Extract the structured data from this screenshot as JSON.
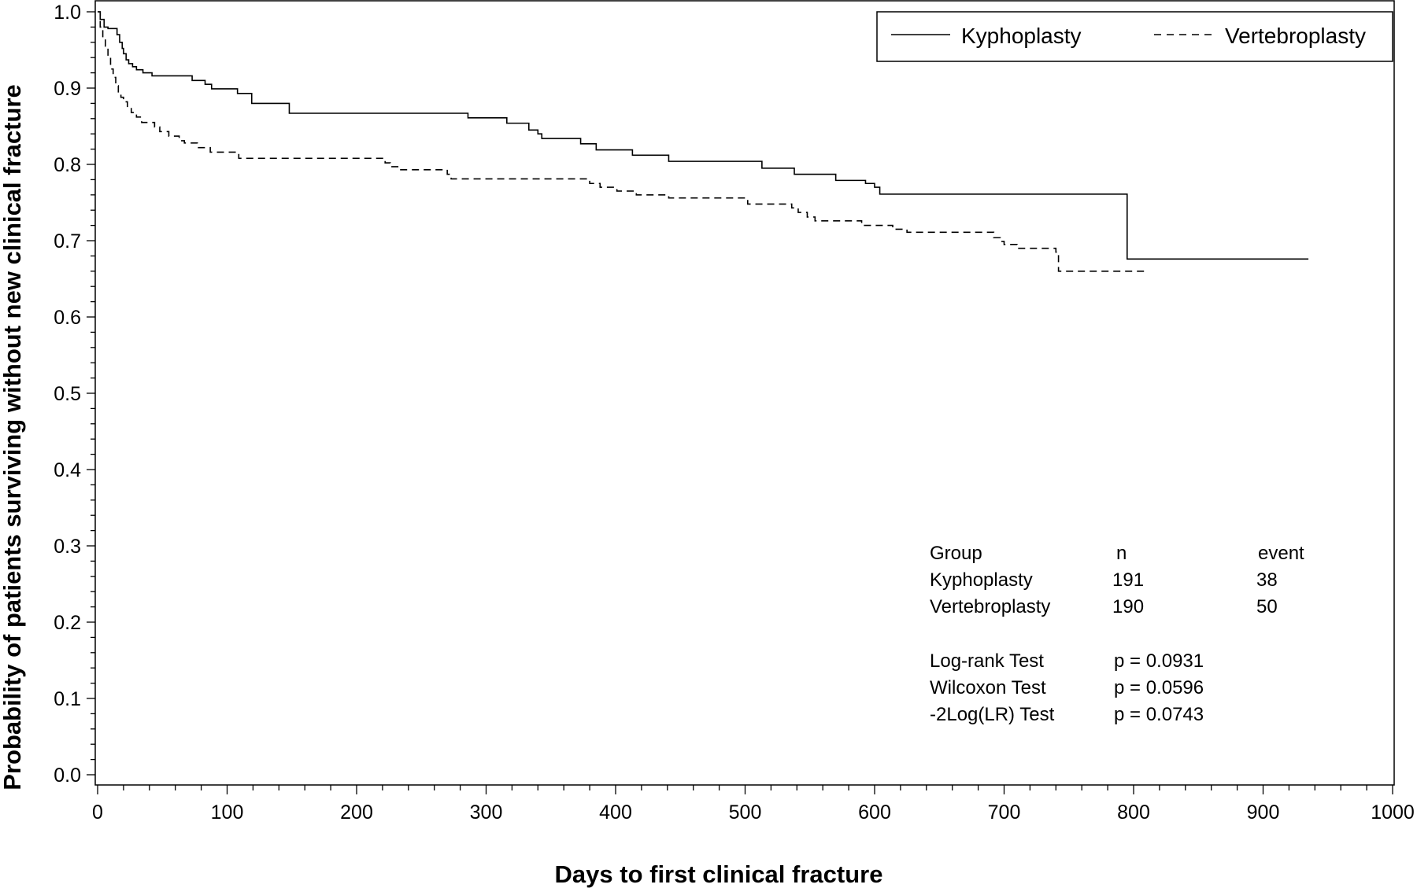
{
  "chart_data": {
    "type": "line",
    "title": "",
    "xlabel": "Days to first clinical fracture",
    "ylabel": "Probability of patients surviving without new clinical fracture",
    "xlim": [
      0,
      1000
    ],
    "ylim": [
      0.0,
      1.0
    ],
    "x_ticks": [
      0,
      100,
      200,
      300,
      400,
      500,
      600,
      700,
      800,
      900,
      1000
    ],
    "x_tick_labels": [
      "0",
      "100",
      "200",
      "300",
      "400",
      "500",
      "600",
      "700",
      "800",
      "900",
      "1000"
    ],
    "y_ticks": [
      0.0,
      0.1,
      0.2,
      0.3,
      0.4,
      0.5,
      0.6,
      0.7,
      0.8,
      0.9,
      1.0
    ],
    "y_tick_labels": [
      "0.0",
      "0.1",
      "0.2",
      "0.3",
      "0.4",
      "0.5",
      "0.6",
      "0.7",
      "0.8",
      "0.9",
      "1.0"
    ],
    "grid": false,
    "legend_position": "top-right",
    "series": [
      {
        "name": "Kyphoplasty",
        "line_style": "solid",
        "x": [
          0,
          2,
          5,
          8,
          15,
          17,
          19,
          20,
          22,
          24,
          27,
          30,
          35,
          42,
          73,
          83,
          88,
          108,
          119,
          148,
          286,
          316,
          333,
          340,
          343,
          373,
          385,
          413,
          441,
          513,
          538,
          570,
          593,
          600,
          604,
          795,
          935
        ],
        "y": [
          1.0,
          0.99,
          0.98,
          0.978,
          0.97,
          0.96,
          0.952,
          0.945,
          0.937,
          0.932,
          0.928,
          0.924,
          0.92,
          0.916,
          0.91,
          0.905,
          0.899,
          0.893,
          0.88,
          0.867,
          0.861,
          0.854,
          0.845,
          0.84,
          0.834,
          0.827,
          0.819,
          0.812,
          0.804,
          0.795,
          0.787,
          0.779,
          0.775,
          0.77,
          0.761,
          0.676,
          0.676
        ]
      },
      {
        "name": "Vertebroplasty",
        "line_style": "dashed",
        "x": [
          0,
          2,
          4,
          6,
          8,
          10,
          12,
          14,
          16,
          18,
          20,
          23,
          26,
          30,
          34,
          44,
          48,
          55,
          63,
          67,
          77,
          87,
          109,
          222,
          226,
          233,
          270,
          273,
          380,
          388,
          401,
          416,
          441,
          502,
          536,
          541,
          548,
          554,
          590,
          614,
          625,
          692,
          697,
          700,
          710,
          740,
          742,
          810
        ],
        "y": [
          1.0,
          0.98,
          0.965,
          0.955,
          0.94,
          0.925,
          0.914,
          0.903,
          0.894,
          0.888,
          0.882,
          0.875,
          0.868,
          0.862,
          0.855,
          0.849,
          0.843,
          0.837,
          0.831,
          0.828,
          0.822,
          0.816,
          0.808,
          0.802,
          0.797,
          0.793,
          0.787,
          0.781,
          0.775,
          0.77,
          0.765,
          0.76,
          0.756,
          0.748,
          0.743,
          0.737,
          0.731,
          0.726,
          0.72,
          0.715,
          0.711,
          0.704,
          0.699,
          0.695,
          0.69,
          0.685,
          0.66,
          0.66
        ]
      }
    ],
    "stats_table": {
      "headers": [
        "Group",
        "n",
        "event"
      ],
      "rows": [
        [
          "Kyphoplasty",
          "191",
          "38"
        ],
        [
          "Vertebroplasty",
          "190",
          "50"
        ]
      ]
    },
    "tests": [
      [
        "Log-rank Test",
        "p = 0.0931"
      ],
      [
        "Wilcoxon Test",
        "p = 0.0596"
      ],
      [
        "-2Log(LR) Test",
        "p = 0.0743"
      ]
    ]
  }
}
